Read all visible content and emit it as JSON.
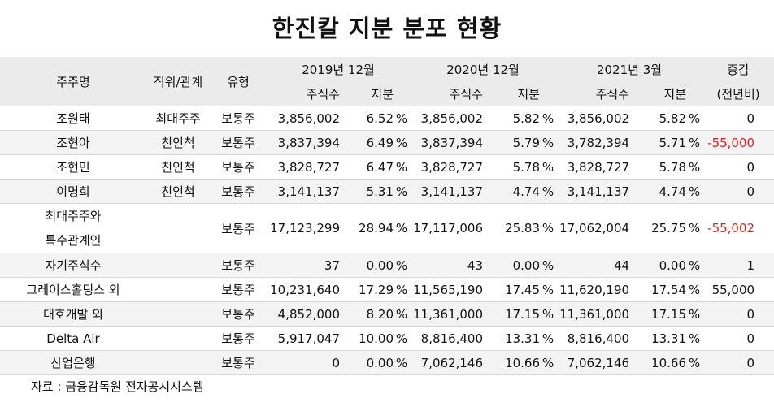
{
  "title": "한진칼 지분 분포 현황",
  "header": {
    "name": "주주명",
    "relation": "직위/관계",
    "type": "유형",
    "periods": [
      "2019년 12월",
      "2020년 12월",
      "2021년 3월"
    ],
    "shares": "주식수",
    "stake": "지분",
    "change_line1": "증감",
    "change_line2": "(전년비)"
  },
  "pct_sign": "%",
  "rows": [
    {
      "name": "조원태",
      "relation": "최대주주",
      "type": "보통주",
      "s2019": "3,856,002",
      "p2019": "6.52",
      "s2020": "3,856,002",
      "p2020": "5.82",
      "s2021": "3,856,002",
      "p2021": "5.82",
      "change": "0"
    },
    {
      "name": "조현아",
      "relation": "친인척",
      "type": "보통주",
      "s2019": "3,837,394",
      "p2019": "6.49",
      "s2020": "3,837,394",
      "p2020": "5.79",
      "s2021": "3,782,394",
      "p2021": "5.71",
      "change": "-55,000"
    },
    {
      "name": "조현민",
      "relation": "친인척",
      "type": "보통주",
      "s2019": "3,828,727",
      "p2019": "6.47",
      "s2020": "3,828,727",
      "p2020": "5.78",
      "s2021": "3,828,727",
      "p2021": "5.78",
      "change": "0"
    },
    {
      "name": "이명희",
      "relation": "친인척",
      "type": "보통주",
      "s2019": "3,141,137",
      "p2019": "5.31",
      "s2020": "3,141,137",
      "p2020": "4.74",
      "s2021": "3,141,137",
      "p2021": "4.74",
      "change": "0"
    },
    {
      "name_line1": "최대주주와",
      "name_line2": "특수관계인",
      "relation": "",
      "type": "보통주",
      "s2019": "17,123,299",
      "p2019": "28.94",
      "s2020": "17,117,006",
      "p2020": "25.83",
      "s2021": "17,062,004",
      "p2021": "25.75",
      "change": "-55,002"
    },
    {
      "name": "자기주식수",
      "relation": "",
      "type": "보통주",
      "s2019": "37",
      "p2019": "0.00",
      "s2020": "43",
      "p2020": "0.00",
      "s2021": "44",
      "p2021": "0.00",
      "change": "1"
    },
    {
      "name": "그레이스홀딩스 외",
      "relation": "",
      "type": "보통주",
      "s2019": "10,231,640",
      "p2019": "17.29",
      "s2020": "11,565,190",
      "p2020": "17.45",
      "s2021": "11,620,190",
      "p2021": "17.54",
      "change": "55,000"
    },
    {
      "name": "대호개발 외",
      "relation": "",
      "type": "보통주",
      "s2019": "4,852,000",
      "p2019": "8.20",
      "s2020": "11,361,000",
      "p2020": "17.15",
      "s2021": "11,361,000",
      "p2021": "17.15",
      "change": "0"
    },
    {
      "name": "Delta Air",
      "relation": "",
      "type": "보통주",
      "s2019": "5,917,047",
      "p2019": "10.00",
      "s2020": "8,816,400",
      "p2020": "13.31",
      "s2021": "8,816,400",
      "p2021": "13.31",
      "change": "0"
    },
    {
      "name": "산업은행",
      "relation": "",
      "type": "보통주",
      "s2019": "0",
      "p2019": "0.00",
      "s2020": "7,062,146",
      "p2020": "10.66",
      "s2021": "7,062,146",
      "p2021": "10.66",
      "change": "0"
    }
  ],
  "source_note": "자료 : 금융감독원 전자공시시스템",
  "colors": {
    "negative": "#e02020",
    "header_bg": "#ebebeb",
    "alt_row_bg": "#f3f3f3"
  }
}
